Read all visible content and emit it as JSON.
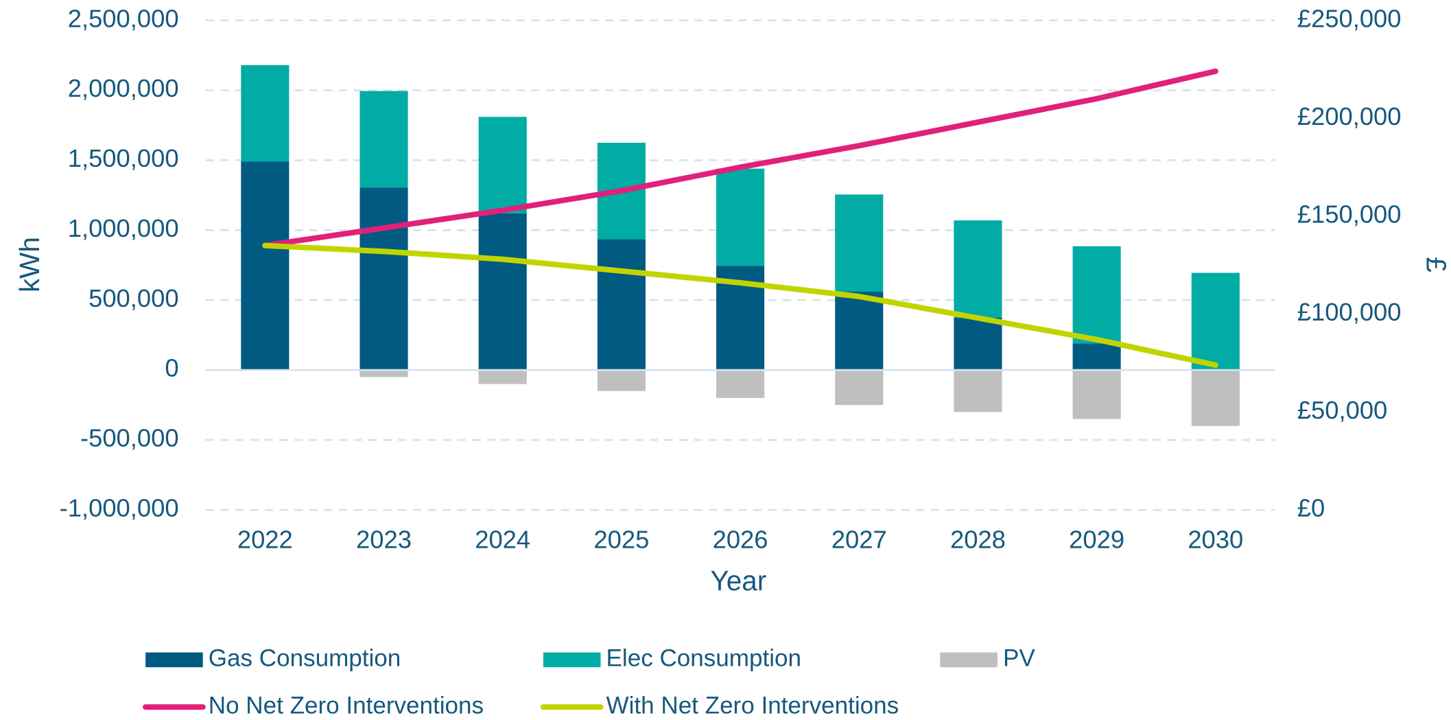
{
  "chart_data": {
    "type": "bar",
    "stacked": true,
    "x_label": "Year",
    "y_label": "kWh",
    "y2_label": "£",
    "categories": [
      "2022",
      "2023",
      "2024",
      "2025",
      "2026",
      "2027",
      "2028",
      "2029",
      "2030"
    ],
    "series": [
      {
        "name": "Gas Consumption",
        "color": "#005a82",
        "values": [
          1490000,
          1305000,
          1120000,
          935000,
          745000,
          560000,
          375000,
          190000,
          0
        ]
      },
      {
        "name": "Elec Consumption",
        "color": "#00aca4",
        "values": [
          690000,
          690000,
          690000,
          690000,
          695000,
          695000,
          695000,
          695000,
          695000
        ]
      },
      {
        "name": "PV",
        "color": "#bfbfbf",
        "values": [
          0,
          -50000,
          -100000,
          -150000,
          -200000,
          -250000,
          -300000,
          -350000,
          -400000
        ]
      },
      {
        "name": "No Net Zero Interventions",
        "color": "#e0217a",
        "type": "line",
        "axis": "y2",
        "values": [
          135000,
          144000,
          153000,
          163000,
          175000,
          186000,
          198000,
          210000,
          224000
        ]
      },
      {
        "name": "With Net Zero Interventions",
        "color": "#c2d400",
        "type": "line",
        "axis": "y2",
        "values": [
          135000,
          132000,
          128000,
          122000,
          116000,
          109000,
          98000,
          87000,
          74000
        ]
      }
    ],
    "ylim": [
      -1000000,
      2500000
    ],
    "yticks": [
      {
        "value": -1000000,
        "label": "-1,000,000"
      },
      {
        "value": -500000,
        "label": "-500,000"
      },
      0,
      {
        "value": 500000,
        "label": "500,000"
      },
      {
        "value": 1000000,
        "label": "1,000,000"
      },
      {
        "value": 1500000,
        "label": "1,500,000"
      },
      {
        "value": 2000000,
        "label": "2,000,000"
      },
      {
        "value": 2500000,
        "label": "2,500,000"
      }
    ],
    "y2lim": [
      0,
      250000
    ],
    "y2ticks": [
      {
        "value": 0,
        "label": "£0"
      },
      {
        "value": 50000,
        "label": "£50,000"
      },
      {
        "value": 100000,
        "label": "£100,000"
      },
      {
        "value": 150000,
        "label": "£150,000"
      },
      {
        "value": 200000,
        "label": "£200,000"
      },
      {
        "value": 250000,
        "label": "£250,000"
      }
    ],
    "grid": true,
    "legend": "bottom"
  }
}
